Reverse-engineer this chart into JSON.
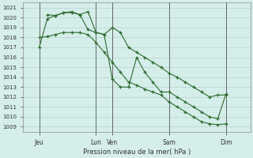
{
  "title": "Pression niveau de la mer( hPa )",
  "ylabel_values": [
    1009,
    1010,
    1011,
    1012,
    1013,
    1014,
    1015,
    1016,
    1017,
    1018,
    1019,
    1020,
    1021
  ],
  "ylim": [
    1008.5,
    1021.5
  ],
  "xlim": [
    0,
    28
  ],
  "background_color": "#d5eeea",
  "line_color": "#2d6a2d",
  "grid_color": "#b0ccc8",
  "vlines": [
    2,
    9,
    11,
    18,
    25
  ],
  "xtick_positions": [
    2,
    9,
    11,
    18,
    25
  ],
  "xtick_labels": [
    "Jeu",
    "Lun",
    "Ven",
    "Sam",
    "Dim"
  ],
  "series": [
    [
      2,
      1017.0,
      3,
      1019.9,
      4,
      1020.2,
      5,
      1020.5,
      6,
      1020.5,
      7,
      1020.3,
      8,
      1020.6,
      9,
      1018.5,
      10,
      1018.3,
      11,
      1019.0,
      12,
      1018.5,
      13,
      1017.0,
      14,
      1016.5,
      15,
      1016.0,
      16,
      1015.5,
      17,
      1015.0,
      18,
      1014.4,
      19,
      1014.0,
      20,
      1013.5,
      21,
      1013.0,
      22,
      1012.5,
      23,
      1012.0,
      24,
      1012.2,
      25,
      1012.2
    ],
    [
      3,
      1020.3,
      4,
      1020.2,
      5,
      1020.5,
      6,
      1020.6,
      7,
      1020.3,
      8,
      1018.8,
      9,
      1018.5,
      10,
      1018.3,
      11,
      1013.8,
      12,
      1013.0,
      13,
      1013.0,
      14,
      1016.0,
      15,
      1014.5,
      16,
      1013.5,
      17,
      1012.5,
      18,
      1012.5,
      19,
      1012.0,
      20,
      1011.5,
      21,
      1011.0,
      22,
      1010.5,
      23,
      1010.0,
      24,
      1009.8,
      25,
      1012.3
    ],
    [
      2,
      1018.0,
      3,
      1018.1,
      4,
      1018.3,
      5,
      1018.5,
      6,
      1018.5,
      7,
      1018.5,
      8,
      1018.3,
      9,
      1017.5,
      10,
      1016.5,
      11,
      1015.5,
      12,
      1014.5,
      13,
      1013.5,
      14,
      1013.2,
      15,
      1012.8,
      16,
      1012.5,
      17,
      1012.2,
      18,
      1011.5,
      19,
      1011.0,
      20,
      1010.5,
      21,
      1010.0,
      22,
      1009.5,
      23,
      1009.3,
      24,
      1009.2,
      25,
      1009.3
    ]
  ]
}
